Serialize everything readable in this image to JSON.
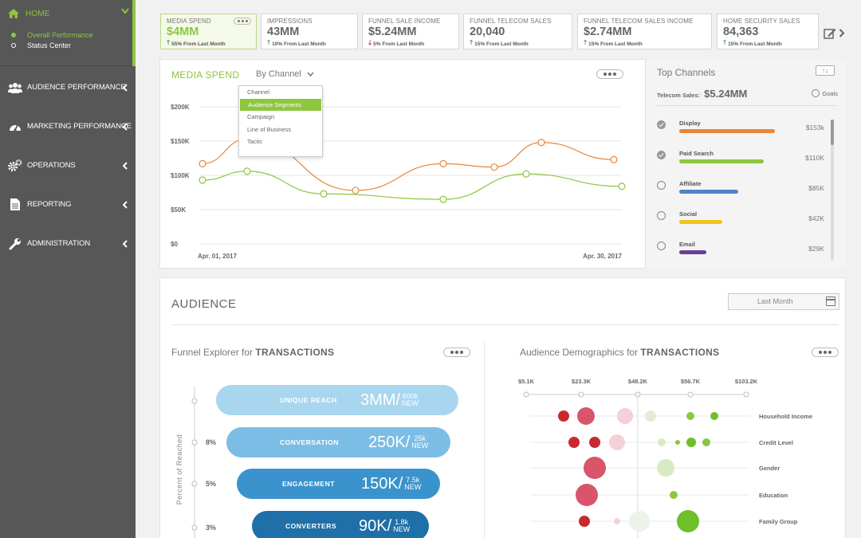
{
  "sidebar": {
    "home_label": "HOME",
    "sub_items": [
      "Overall Performance",
      "Status Center"
    ],
    "items": [
      {
        "label": "AUDIENCE PERFORMANCE",
        "icon": "people-icon"
      },
      {
        "label": "MARKETING PERFORMANCE",
        "icon": "gauge-icon"
      },
      {
        "label": "OPERATIONS",
        "icon": "gears-icon"
      },
      {
        "label": "REPORTING",
        "icon": "document-icon"
      },
      {
        "label": "ADMINISTRATION",
        "icon": "wrench-icon"
      }
    ]
  },
  "kpis": [
    {
      "title": "MEDIA SPEND",
      "value": "$4MM",
      "delta": "55% From Last Month",
      "direction": "up"
    },
    {
      "title": "IMPRESSIONS",
      "value": "43MM",
      "delta": "10% From Last Month",
      "direction": "up"
    },
    {
      "title": "FUNNEL SALE INCOME",
      "value": "$5.24MM",
      "delta": "5% From Last Month",
      "direction": "down"
    },
    {
      "title": "FUNNEL TELECOM SALES",
      "value": "20,040",
      "delta": "15% From Last Month",
      "direction": "up"
    },
    {
      "title": "FUNNEL TELECOM SALES INCOME",
      "value": "$2.74MM",
      "delta": "15% From Last Month",
      "direction": "up"
    },
    {
      "title": "HOME SECURITY SALES",
      "value": "84,363",
      "delta": "15% From Last Month",
      "direction": "up"
    }
  ],
  "media_spend": {
    "title": "MEDIA SPEND",
    "select_value": "By Channel",
    "dropdown_options": [
      "Channel",
      "Audience Segments",
      "Campaign",
      "Line of Business",
      "Tactic"
    ],
    "selected_option": "Audience Segments"
  },
  "chart_data": {
    "type": "line",
    "x_labels": [
      "Apr. 01, 2017",
      "Apr. 30, 2017"
    ],
    "yticks": [
      "$200K",
      "$150K",
      "$100K",
      "$50K",
      "$0"
    ],
    "ylim": [
      0,
      200000
    ],
    "series": [
      {
        "color": "#e8873a",
        "points": [
          [
            0,
            117000
          ],
          [
            1,
            153000
          ],
          [
            2,
            78000
          ],
          [
            3,
            117000
          ],
          [
            4,
            112000
          ],
          [
            5,
            148000
          ],
          [
            6,
            123000
          ]
        ]
      },
      {
        "color": "#8dc63f",
        "points": [
          [
            0,
            93000
          ],
          [
            1,
            106000
          ],
          [
            2,
            73000
          ],
          [
            3,
            65000
          ],
          [
            4,
            102000
          ],
          [
            5,
            84000
          ]
        ]
      }
    ],
    "grid": true
  },
  "top_channels": {
    "title": "Top Channels",
    "total_label": "Telecom Sales:",
    "total_value": "$5.24MM",
    "goals_label": "Goals",
    "channels": [
      {
        "name": "Display",
        "value": "$153k",
        "fraction": 0.6,
        "color": "#e8873a",
        "checked": true
      },
      {
        "name": "Paid Search",
        "value": "$110K",
        "fraction": 0.53,
        "color": "#8dc63f",
        "checked": true
      },
      {
        "name": "Affiliate",
        "value": "$85K",
        "fraction": 0.37,
        "color": "#4a86c5",
        "checked": false
      },
      {
        "name": "Social",
        "value": "$42K",
        "fraction": 0.27,
        "color": "#f0c419",
        "checked": false
      },
      {
        "name": "Email",
        "value": "$29K",
        "fraction": 0.17,
        "color": "#6a3d9a",
        "checked": false
      }
    ]
  },
  "audience": {
    "title": "AUDIENCE",
    "date_value": "Last Month",
    "funnel_title_prefix": "Funnel Explorer for",
    "funnel_title_emph": "TRANSACTIONS",
    "funnel_axis_label": "Percent of Reached",
    "funnel": [
      {
        "label": "UNIQUE REACH",
        "value": "3MM/",
        "new_top": "600k",
        "new_bot": "NEW",
        "pct": "",
        "color": "#a9d6ef"
      },
      {
        "label": "CONVERSATION",
        "value": "250K/",
        "new_top": "25k",
        "new_bot": "NEW",
        "pct": "8%",
        "color": "#7cbde6"
      },
      {
        "label": "ENGAGEMENT",
        "value": "150K/",
        "new_top": "7.5k",
        "new_bot": "NEW",
        "pct": "5%",
        "color": "#3a93cc"
      },
      {
        "label": "CONVERTERS",
        "value": "90K/",
        "new_top": "1.8k",
        "new_bot": "NEW",
        "pct": "3%",
        "color": "#1f6fa8"
      }
    ],
    "demo_title_prefix": "Audience Demographics for",
    "demo_title_emph": "TRANSACTIONS",
    "demo_scale": [
      "$5.1K",
      "$23.3K",
      "$48.2K",
      "$56.7K",
      "$103.2K"
    ],
    "demo_rows": [
      "Household Income",
      "Credit Level",
      "Gender",
      "Education",
      "Family Group"
    ]
  }
}
